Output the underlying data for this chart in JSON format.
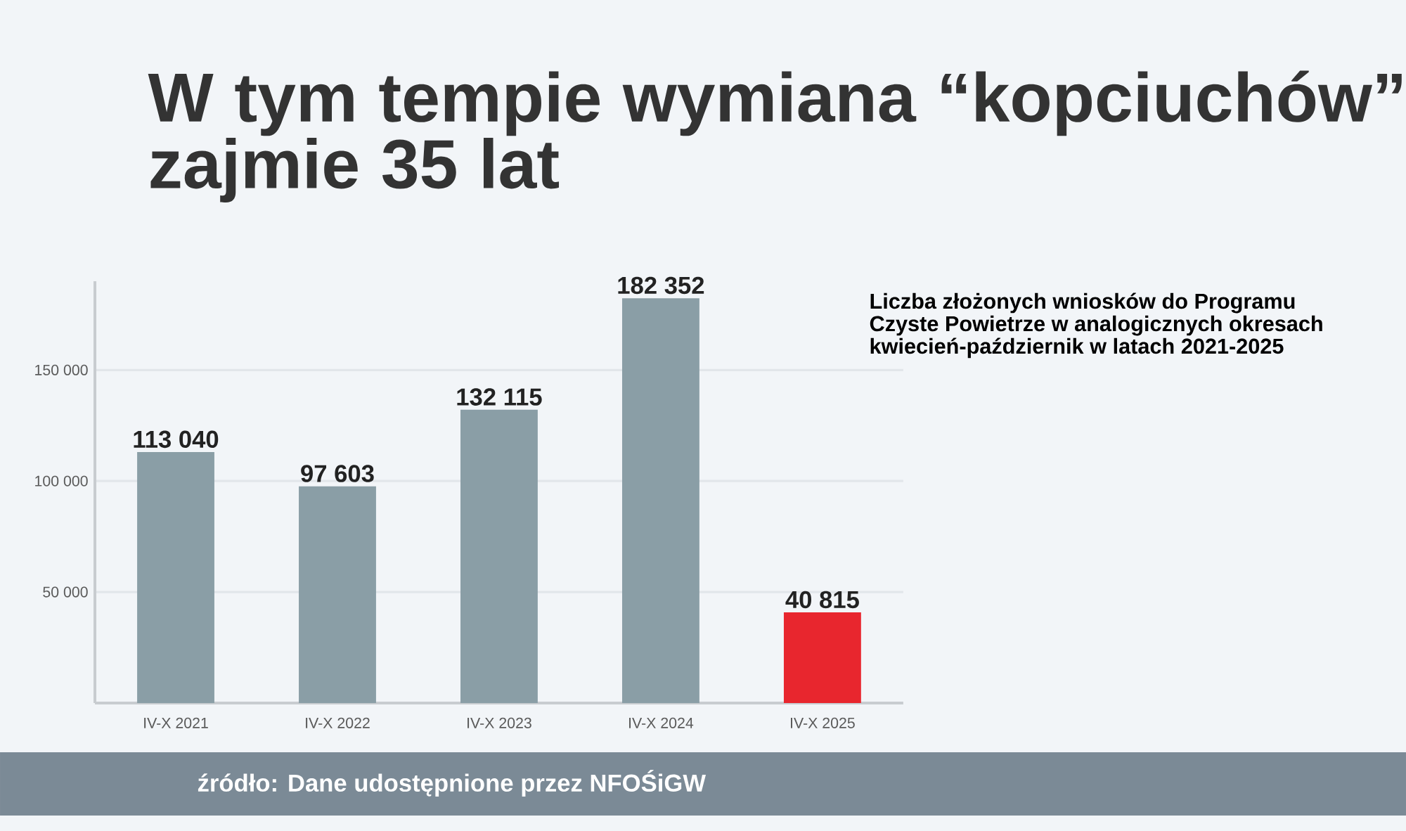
{
  "chart_data": {
    "type": "bar",
    "title": "W tym tempie wymiana “kopciuchów” zajmie 35 lat",
    "categories": [
      "IV-X 2021",
      "IV-X 2022",
      "IV-X 2023",
      "IV-X 2024",
      "IV-X 2025"
    ],
    "values": [
      113040,
      97603,
      132115,
      182352,
      40815
    ],
    "colors": [
      "#8a9ea6",
      "#8a9ea6",
      "#8a9ea6",
      "#8a9ea6",
      "#e8262e"
    ],
    "value_labels": [
      "113 040",
      "97 603",
      "132 115",
      "182 352",
      "40 815"
    ],
    "ylim": [
      0,
      190000
    ],
    "yticks": [
      {
        "value": 50000,
        "label": "50 000"
      },
      {
        "value": 100000,
        "label": "100 000"
      },
      {
        "value": 150000,
        "label": "150 000"
      }
    ],
    "grid": "y",
    "annotations": [
      "Liczba złożonych wniosków do Programu Czyste Powietrze w analogicznych okresach kwiecień-październik w latach 2021-2025",
      "źródło: Dane udostępnione przez NFOŚiGW"
    ]
  }
}
